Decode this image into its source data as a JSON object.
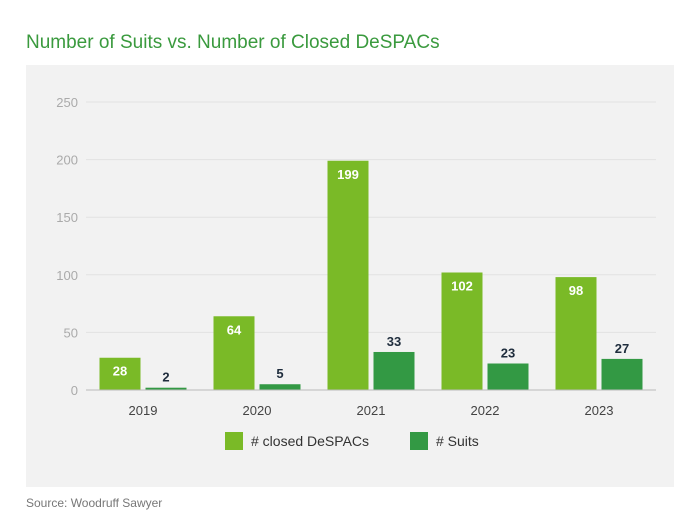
{
  "chart_data": {
    "type": "bar",
    "title": "Number of Suits vs. Number of Closed DeSPACs",
    "categories": [
      "2019",
      "2020",
      "2021",
      "2022",
      "2023"
    ],
    "series": [
      {
        "name": "# closed DeSPACs",
        "values": [
          28,
          64,
          199,
          102,
          98
        ],
        "color": "#7aba27"
      },
      {
        "name": "# Suits",
        "values": [
          2,
          5,
          33,
          23,
          27
        ],
        "color": "#339944"
      }
    ],
    "ylim": [
      0,
      250
    ],
    "yticks": [
      0,
      50,
      100,
      150,
      200,
      250
    ],
    "grid": true,
    "legend": "bottom",
    "xlabel": "",
    "ylabel": ""
  },
  "source": "Source: Woodruff Sawyer"
}
